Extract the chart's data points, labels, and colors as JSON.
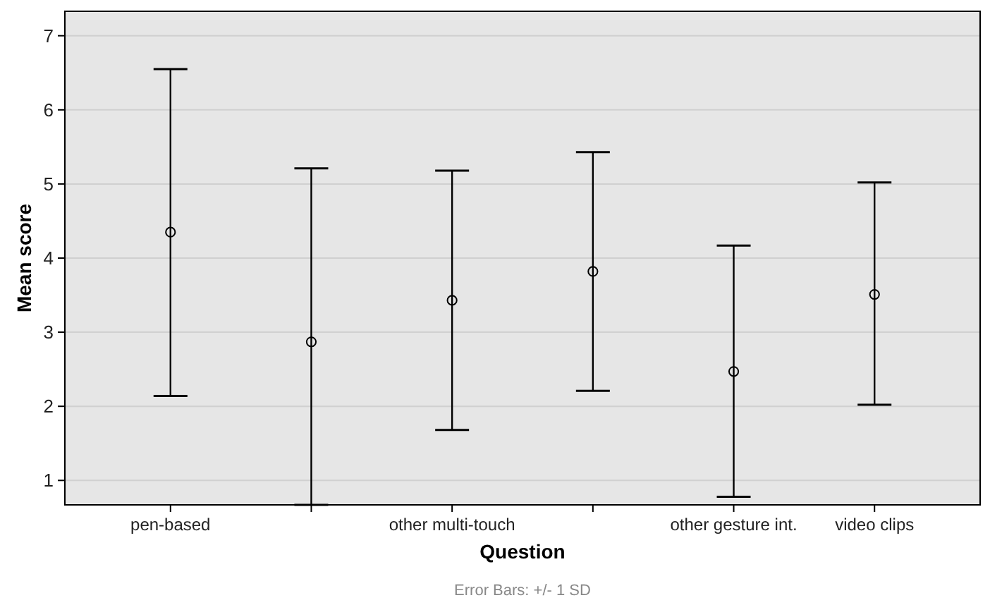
{
  "chart_data": {
    "type": "scatter",
    "xlabel": "Question",
    "ylabel": "Mean score",
    "categories": [
      "pen-based",
      null,
      "other multi-touch",
      null,
      "other gesture int.",
      "video clips"
    ],
    "values": [
      4.35,
      2.87,
      3.43,
      3.82,
      2.47,
      3.51
    ],
    "errors": [
      [
        2.14,
        6.55
      ],
      [
        0.67,
        5.21
      ],
      [
        1.68,
        5.18
      ],
      [
        2.21,
        5.43
      ],
      [
        0.78,
        4.17
      ],
      [
        2.02,
        5.02
      ]
    ],
    "color": "#000000",
    "marker": "circle",
    "grid": "y",
    "ylim": [
      0.67,
      7.33
    ],
    "yticks": [
      1,
      2,
      3,
      4,
      5,
      6,
      7
    ],
    "annotations": [
      "Error Bars: +/- 1 SD"
    ]
  }
}
